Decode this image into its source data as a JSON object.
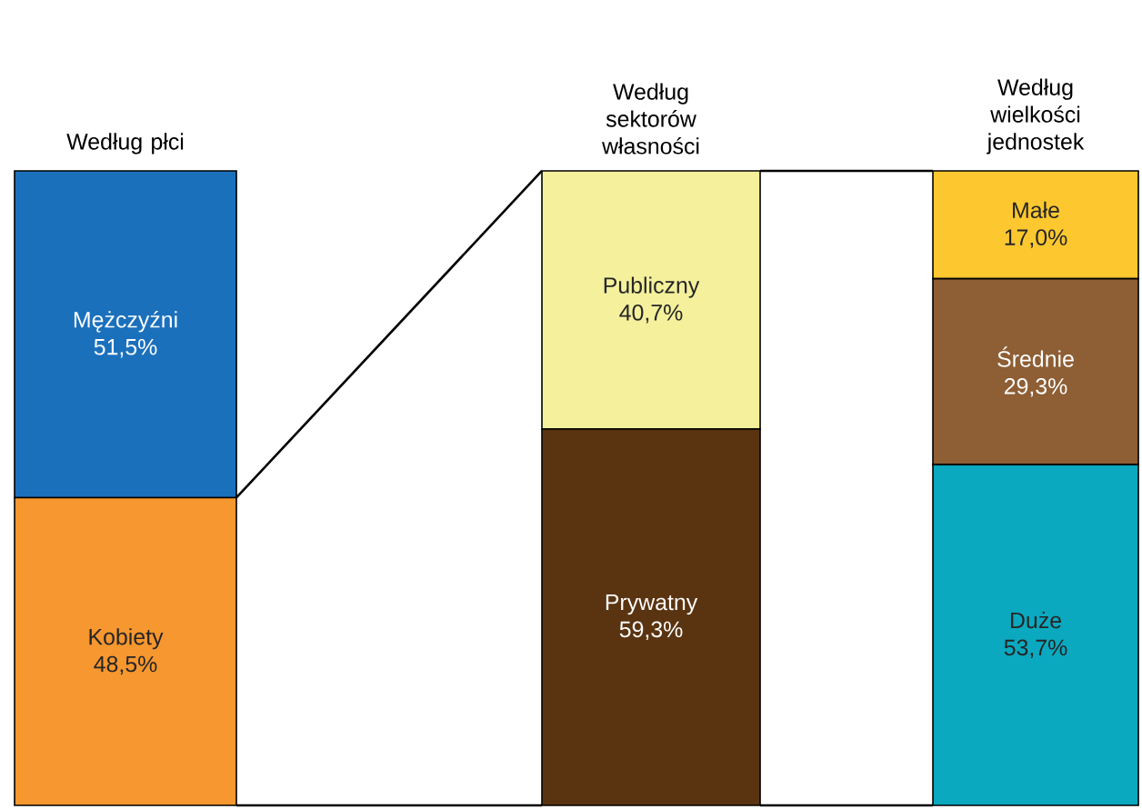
{
  "chart_data": [
    {
      "type": "bar",
      "stacked": true,
      "title": "Według płci",
      "categories": [
        null
      ],
      "series": [
        {
          "name": "Kobiety",
          "color": "#f7972f",
          "values": [
            48.5
          ],
          "value_labels": [
            "48,5%"
          ]
        },
        {
          "name": "Mężczyźni",
          "color": "#1b70bc",
          "values": [
            51.5
          ],
          "value_labels": [
            "51,5%"
          ]
        }
      ]
    },
    {
      "type": "bar",
      "stacked": true,
      "title": "Według sektorów własności",
      "categories": [
        null
      ],
      "series": [
        {
          "name": "Prywatny",
          "color": "#5a3411",
          "values": [
            59.3
          ],
          "value_labels": [
            "59,3%"
          ]
        },
        {
          "name": "Publiczny",
          "color": "#f4f09c",
          "values": [
            40.7
          ],
          "value_labels": [
            "40,7%"
          ]
        }
      ]
    },
    {
      "type": "bar",
      "stacked": true,
      "title": "Według wielkości jednostek",
      "categories": [
        null
      ],
      "series": [
        {
          "name": "Duże",
          "color": "#0aa9bf",
          "values": [
            53.7
          ],
          "value_labels": [
            "53,7%"
          ]
        },
        {
          "name": "Średnie",
          "color": "#8e5e34",
          "values": [
            29.3
          ],
          "value_labels": [
            "29,3%"
          ]
        },
        {
          "name": "Małe",
          "color": "#fdc82f",
          "values": [
            17.0
          ],
          "value_labels": [
            "17,0%"
          ]
        }
      ]
    }
  ]
}
